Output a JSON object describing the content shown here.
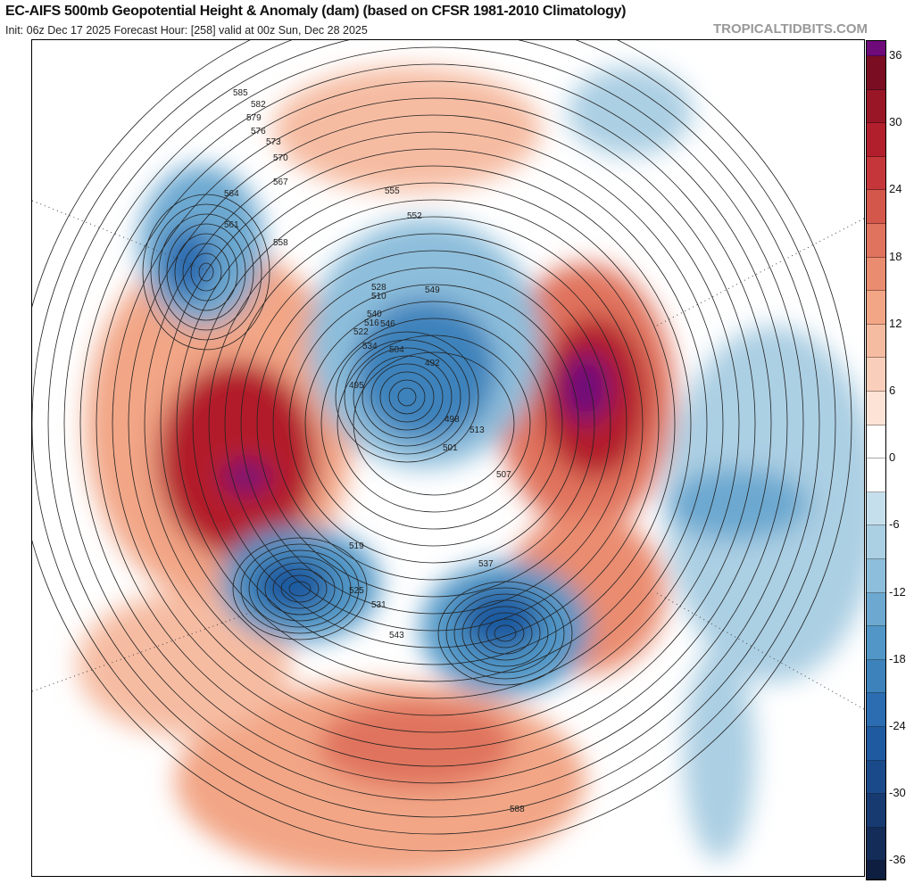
{
  "header": {
    "title": "EC-AIFS 500mb Geopotential Height & Anomaly (dam) (based on CFSR 1981-2010 Climatology)",
    "subtitle": "Init: 06z Dec 17 2025   Forecast Hour: [258]   valid at 00z Sun, Dec 28 2025",
    "brand": "TROPICALTIDBITS.COM"
  },
  "colorbar": {
    "ticks": [
      "36",
      "30",
      "24",
      "18",
      "12",
      "6",
      "0",
      "-6",
      "-12",
      "-18",
      "-24",
      "-30",
      "-36"
    ],
    "colors": [
      "#6e0a7a",
      "#7b0d22",
      "#991626",
      "#b21f2c",
      "#c4363a",
      "#d3574a",
      "#e0735d",
      "#ea8c70",
      "#f2a686",
      "#f6bca2",
      "#f9cfbb",
      "#fde3d6",
      "#ffffff",
      "#ffffff",
      "#c6dfec",
      "#abcfe3",
      "#8dbedb",
      "#6ca8d0",
      "#5196c6",
      "#3d82bb",
      "#2c6cb0",
      "#1f5aa0",
      "#1b4a8a",
      "#173a70",
      "#132c58",
      "#0e1e40"
    ]
  },
  "map": {
    "height_contour_labels": [
      "585",
      "582",
      "579",
      "576",
      "573",
      "570",
      "567",
      "564",
      "561",
      "558",
      "555",
      "552",
      "549",
      "546",
      "540",
      "534",
      "528",
      "522",
      "516",
      "510",
      "504",
      "498",
      "492",
      "495",
      "501",
      "507",
      "513",
      "519",
      "525",
      "531",
      "537",
      "543",
      "588"
    ]
  }
}
